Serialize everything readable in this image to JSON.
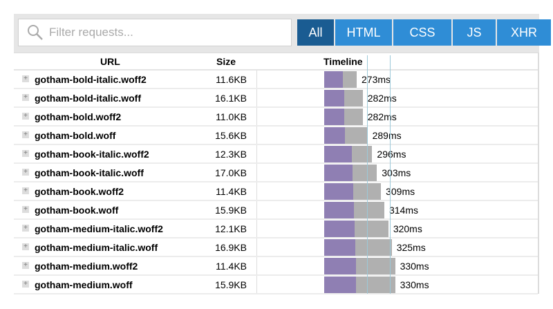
{
  "search": {
    "placeholder": "Filter requests...",
    "icon": "search-icon"
  },
  "filters": [
    {
      "label": "All",
      "active": true
    },
    {
      "label": "HTML"
    },
    {
      "label": "CSS"
    },
    {
      "label": "JS"
    },
    {
      "label": "XHR"
    }
  ],
  "columns": {
    "url": "URL",
    "size": "Size",
    "timeline": "Timeline"
  },
  "colors": {
    "active_filter": "#1a5c92",
    "filter": "#2f8dd6",
    "wait": "#8f7fb3",
    "receive": "#b0b0b0"
  },
  "rows": [
    {
      "url": "gotham-bold-italic.woff2",
      "size": "11.6KB",
      "time": "273ms"
    },
    {
      "url": "gotham-bold-italic.woff",
      "size": "16.1KB",
      "time": "282ms"
    },
    {
      "url": "gotham-bold.woff2",
      "size": "11.0KB",
      "time": "282ms"
    },
    {
      "url": "gotham-bold.woff",
      "size": "15.6KB",
      "time": "289ms"
    },
    {
      "url": "gotham-book-italic.woff2",
      "size": "12.3KB",
      "time": "296ms"
    },
    {
      "url": "gotham-book-italic.woff",
      "size": "17.0KB",
      "time": "303ms"
    },
    {
      "url": "gotham-book.woff2",
      "size": "11.4KB",
      "time": "309ms"
    },
    {
      "url": "gotham-book.woff",
      "size": "15.9KB",
      "time": "314ms"
    },
    {
      "url": "gotham-medium-italic.woff2",
      "size": "12.1KB",
      "time": "320ms"
    },
    {
      "url": "gotham-medium-italic.woff",
      "size": "16.9KB",
      "time": "325ms"
    },
    {
      "url": "gotham-medium.woff2",
      "size": "11.4KB",
      "time": "330ms"
    },
    {
      "url": "gotham-medium.woff",
      "size": "15.9KB",
      "time": "330ms"
    }
  ]
}
